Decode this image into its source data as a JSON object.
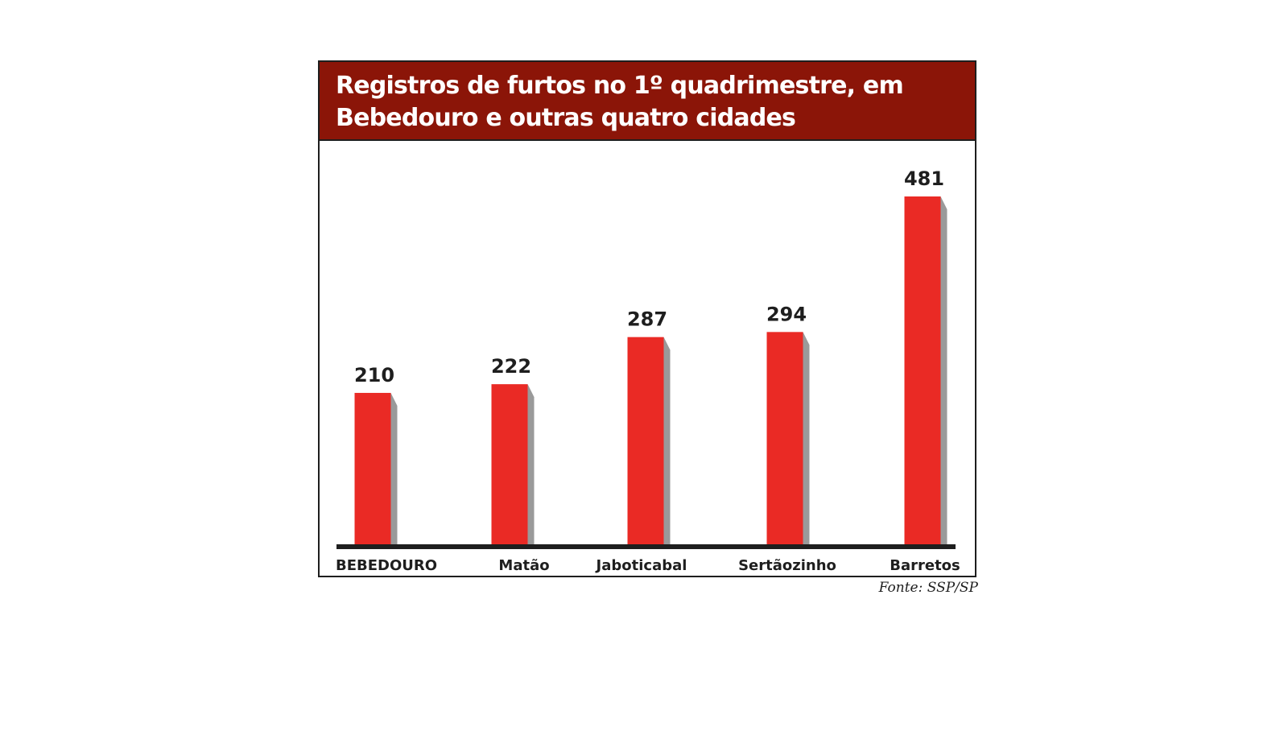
{
  "chart_data": {
    "type": "bar",
    "title": "Registros de furtos no 1º quadrimestre, em Bebedouro e outras quatro cidades",
    "categories": [
      "BEBEDOURO",
      "Matão",
      "Jaboticabal",
      "Sertãozinho",
      "Barretos"
    ],
    "values": [
      210,
      222,
      287,
      294,
      481
    ],
    "data_labels": [
      "210",
      "222",
      "287",
      "294",
      "481"
    ],
    "xlabel": "",
    "ylabel": "",
    "ylim": [
      0,
      481
    ],
    "grid": false,
    "legend": "none",
    "source": "Fonte: SSP/SP"
  },
  "colors": {
    "header_background": "#8b1508",
    "bar_fill": "#ea2a25",
    "bar_shadow": "#9a9a9a",
    "axis": "#1e1e1e",
    "text": "#1e1e1e"
  }
}
